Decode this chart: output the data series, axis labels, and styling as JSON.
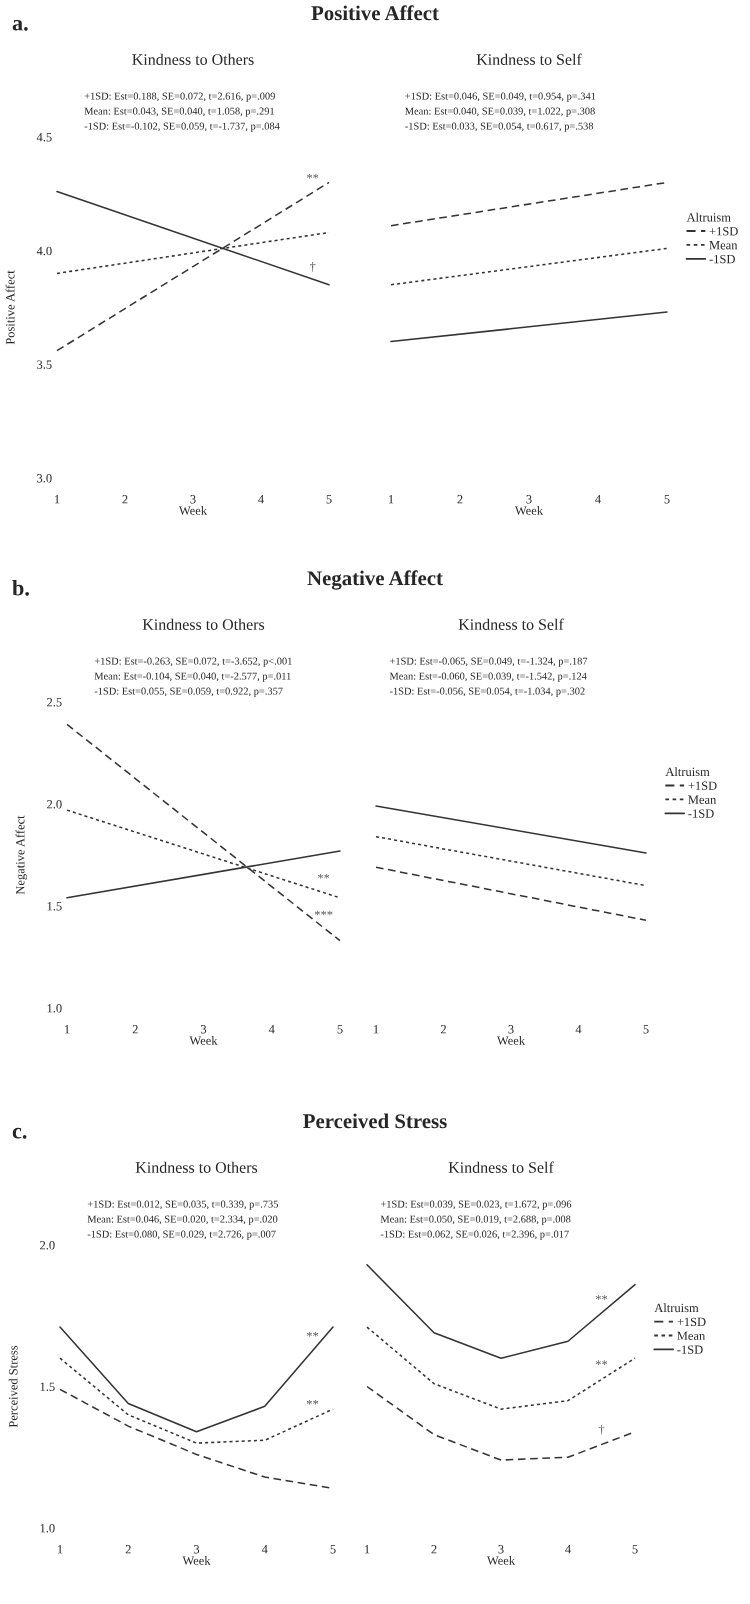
{
  "chart_data": [
    {
      "type": "line",
      "title": "Kindness to Others",
      "xlabel": "Week",
      "ylabel": "Positive Affect",
      "x": [
        1,
        5
      ],
      "xlim": [
        1,
        5
      ],
      "xticks": [
        1,
        2,
        3,
        4,
        5
      ],
      "ylim": [
        3,
        4.5
      ],
      "yticks": [
        {
          "value": 3,
          "label": "3.0"
        },
        {
          "value": 3.5,
          "label": "3.5"
        },
        {
          "value": 4,
          "label": "4.0"
        },
        {
          "value": 4.5,
          "label": "4.5"
        }
      ],
      "grid": false,
      "legend": false,
      "series": [
        {
          "type": "line",
          "line_style": "dashed",
          "color": "#333333",
          "values": [
            3.56,
            4.3
          ]
        },
        {
          "type": "line",
          "line_style": "dotted",
          "color": "#333333",
          "values": [
            3.9,
            4.08
          ]
        },
        {
          "type": "line",
          "line_style": "solid",
          "color": "#333333",
          "values": [
            4.26,
            3.85
          ]
        }
      ],
      "annotations": [
        "a.",
        "Positive Affect",
        "+1SD: Est=0.188, SE=0.072, t=2.616, p=.009",
        "Mean: Est=0.043, SE=0.040, t=1.058, p=.291",
        "-1SD: Est=-0.102, SE=0.059, t=-1.737, p=.084",
        {
          "text": "**",
          "x": 4.76,
          "y": 4.26
        },
        {
          "text": "†",
          "x": 4.76,
          "y": 3.87
        }
      ]
    },
    {
      "type": "line",
      "title": "Kindness to Self",
      "xlabel": "Week",
      "x": [
        1,
        5
      ],
      "xlim": [
        1,
        5
      ],
      "xticks": [
        1,
        2,
        3,
        4,
        5
      ],
      "ylim": [
        3,
        4.5
      ],
      "tick_labels": "x",
      "grid": false,
      "legend": "right",
      "legend_title": "Altruism",
      "series": [
        {
          "type": "line",
          "name": "+1SD",
          "line_style": "dashed",
          "color": "#333333",
          "values": [
            4.11,
            4.3
          ]
        },
        {
          "type": "line",
          "name": "Mean",
          "line_style": "dotted",
          "color": "#333333",
          "values": [
            3.85,
            4.01
          ]
        },
        {
          "type": "line",
          "name": "-1SD",
          "line_style": "solid",
          "color": "#333333",
          "values": [
            3.6,
            3.73
          ]
        }
      ],
      "annotations": [
        "+1SD: Est=0.046, SE=0.049, t=0.954, p=.341",
        "Mean: Est=0.040, SE=0.039, t=1.022, p=.308",
        "-1SD: Est=0.033, SE=0.054, t=0.617, p=.538"
      ]
    },
    {
      "type": "line",
      "title": "Kindness to Others",
      "xlabel": "Week",
      "ylabel": "Negative Affect",
      "x": [
        1,
        5
      ],
      "xlim": [
        1,
        5
      ],
      "xticks": [
        1,
        2,
        3,
        4,
        5
      ],
      "ylim": [
        1,
        2.5
      ],
      "yticks": [
        {
          "value": 1,
          "label": "1.0"
        },
        {
          "value": 1.5,
          "label": "1.5"
        },
        {
          "value": 2,
          "label": "2.0"
        },
        {
          "value": 2.5,
          "label": "2.5"
        }
      ],
      "grid": false,
      "legend": false,
      "series": [
        {
          "type": "line",
          "line_style": "dashed",
          "color": "#333333",
          "values": [
            2.39,
            1.33
          ]
        },
        {
          "type": "line",
          "line_style": "dotted",
          "color": "#333333",
          "values": [
            1.97,
            1.54
          ]
        },
        {
          "type": "line",
          "line_style": "solid",
          "color": "#333333",
          "values": [
            1.54,
            1.77
          ]
        }
      ],
      "annotations": [
        "b.",
        "Negative Affect",
        "+1SD: Est=-0.263, SE=0.072, t=-3.652, p<.001",
        "Mean: Est=-0.104, SE=0.040, t=-2.577, p=.011",
        "-1SD: Est=0.055, SE=0.059, t=0.922, p=.357",
        {
          "text": "**",
          "x": 4.76,
          "y": 1.57
        },
        {
          "text": "***",
          "x": 4.76,
          "y": 1.39
        }
      ]
    },
    {
      "type": "line",
      "title": "Kindness to Self",
      "xlabel": "Week",
      "x": [
        1,
        5
      ],
      "xlim": [
        1,
        5
      ],
      "xticks": [
        1,
        2,
        3,
        4,
        5
      ],
      "ylim": [
        1,
        2.5
      ],
      "tick_labels": "x",
      "grid": false,
      "legend": "right",
      "legend_title": "Altruism",
      "series": [
        {
          "type": "line",
          "name": "+1SD",
          "line_style": "dashed",
          "color": "#333333",
          "values": [
            1.69,
            1.43
          ]
        },
        {
          "type": "line",
          "name": "Mean",
          "line_style": "dotted",
          "color": "#333333",
          "values": [
            1.84,
            1.6
          ]
        },
        {
          "type": "line",
          "name": "-1SD",
          "line_style": "solid",
          "color": "#333333",
          "values": [
            1.99,
            1.76
          ]
        }
      ],
      "annotations": [
        "+1SD: Est=-0.065, SE=0.049, t=-1.324, p=.187",
        "Mean: Est=-0.060, SE=0.039, t=-1.542, p=.124",
        "-1SD: Est=-0.056, SE=0.054, t=-1.034, p=.302"
      ]
    },
    {
      "type": "line",
      "title": "Kindness to Others",
      "xlabel": "Week",
      "ylabel": "Perceived Stress",
      "x": [
        1,
        2,
        3,
        4,
        5
      ],
      "xlim": [
        1,
        5
      ],
      "xticks": [
        1,
        2,
        3,
        4,
        5
      ],
      "ylim": [
        1,
        2
      ],
      "yticks": [
        {
          "value": 1,
          "label": "1.0"
        },
        {
          "value": 1.5,
          "label": "1.5"
        },
        {
          "value": 2,
          "label": "2.0"
        }
      ],
      "grid": false,
      "legend": false,
      "series": [
        {
          "type": "line",
          "line_style": "dashed",
          "color": "#333333",
          "values": [
            1.49,
            1.36,
            1.26,
            1.18,
            1.14
          ]
        },
        {
          "type": "line",
          "line_style": "dotted",
          "color": "#333333",
          "values": [
            1.6,
            1.4,
            1.3,
            1.31,
            1.42
          ]
        },
        {
          "type": "line",
          "line_style": "solid",
          "color": "#333333",
          "values": [
            1.71,
            1.44,
            1.34,
            1.43,
            1.71
          ]
        }
      ],
      "annotations": [
        "c.",
        "Perceived Stress",
        "+1SD: Est=0.012, SE=0.035, t=0.339, p=.735",
        "Mean: Est=0.046, SE=0.020, t=2.334, p=.020",
        "-1SD: Est=0.080, SE=0.029, t=2.726, p=.007",
        {
          "text": "**",
          "x": 4.7,
          "y": 1.63
        },
        {
          "text": "**",
          "x": 4.7,
          "y": 1.39
        }
      ]
    },
    {
      "type": "line",
      "title": "Kindness to Self",
      "xlabel": "Week",
      "x": [
        1,
        2,
        3,
        4,
        5
      ],
      "xlim": [
        1,
        5
      ],
      "xticks": [
        1,
        2,
        3,
        4,
        5
      ],
      "ylim": [
        1,
        2
      ],
      "tick_labels": "x",
      "grid": false,
      "legend": "right",
      "legend_title": "Altruism",
      "series": [
        {
          "type": "line",
          "name": "+1SD",
          "line_style": "dashed",
          "color": "#333333",
          "values": [
            1.5,
            1.33,
            1.24,
            1.25,
            1.34
          ]
        },
        {
          "type": "line",
          "name": "Mean",
          "line_style": "dotted",
          "color": "#333333",
          "values": [
            1.71,
            1.51,
            1.42,
            1.45,
            1.6
          ]
        },
        {
          "type": "line",
          "name": "-1SD",
          "line_style": "solid",
          "color": "#333333",
          "values": [
            1.93,
            1.69,
            1.6,
            1.66,
            1.86
          ]
        }
      ],
      "annotations": [
        "+1SD: Est=0.039, SE=0.023, t=1.672, p=.096",
        "Mean: Est=0.050, SE=0.019, t=2.688, p=.008",
        "-1SD: Est=0.062, SE=0.026, t=2.396, p=.017",
        {
          "text": "**",
          "x": 4.5,
          "y": 1.76
        },
        {
          "text": "**",
          "x": 4.5,
          "y": 1.53
        },
        {
          "text": "†",
          "x": 4.5,
          "y": 1.3
        }
      ]
    }
  ]
}
